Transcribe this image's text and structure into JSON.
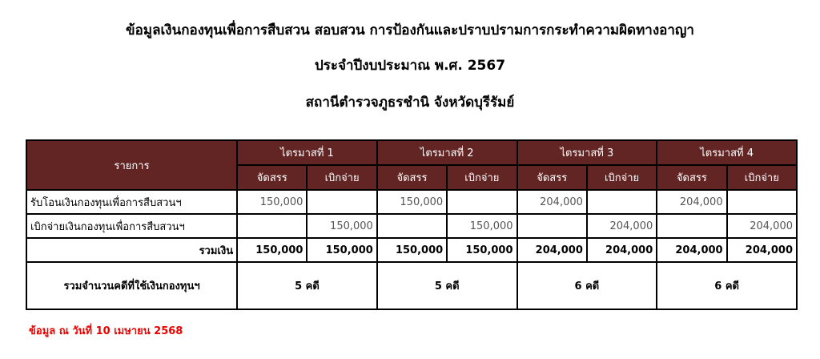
{
  "title": {
    "line1": "ข้อมูลเงินกองทุนเพื่อการสืบสวน สอบสวน การป้องกันและปราบปรามการกระทำความผิดทางอาญา",
    "line2": "ประจำปีงบประมาณ พ.ศ. 2567",
    "line3": "สถานีตำรวจภูธรชำนิ จังหวัดบุรีรัมย์"
  },
  "table": {
    "item_header": "รายการ",
    "quarters": [
      "ไตรมาสที่ 1",
      "ไตรมาสที่ 2",
      "ไตรมาสที่ 3",
      "ไตรมาสที่ 4"
    ],
    "sub": {
      "alloc": "จัดสรร",
      "spend": "เบิกจ่าย"
    },
    "rows": [
      {
        "label": "รับโอนเงินกองทุนเพื่อการสืบสวนฯ",
        "values": [
          "150,000",
          "",
          "150,000",
          "",
          "204,000",
          "",
          "204,000",
          ""
        ]
      },
      {
        "label": "เบิกจ่ายเงินกองทุนเพื่อการสืบสวนฯ",
        "values": [
          "",
          "150,000",
          "",
          "150,000",
          "",
          "204,000",
          "",
          "204,000"
        ]
      }
    ],
    "total": {
      "label": "รวมเงิน",
      "values": [
        "150,000",
        "150,000",
        "150,000",
        "150,000",
        "204,000",
        "204,000",
        "204,000",
        "204,000"
      ]
    },
    "cases": {
      "label": "รวมจำนวนคดีที่ใช้เงินกองทุนฯ",
      "values": [
        "5 คดี",
        "5 คดี",
        "6 คดี",
        "6 คดี"
      ]
    }
  },
  "note": "ข้อมูล ณ วันที่ 10 เมษายน 2568",
  "colors": {
    "header_bg": "#632523",
    "note": "#e00000"
  }
}
